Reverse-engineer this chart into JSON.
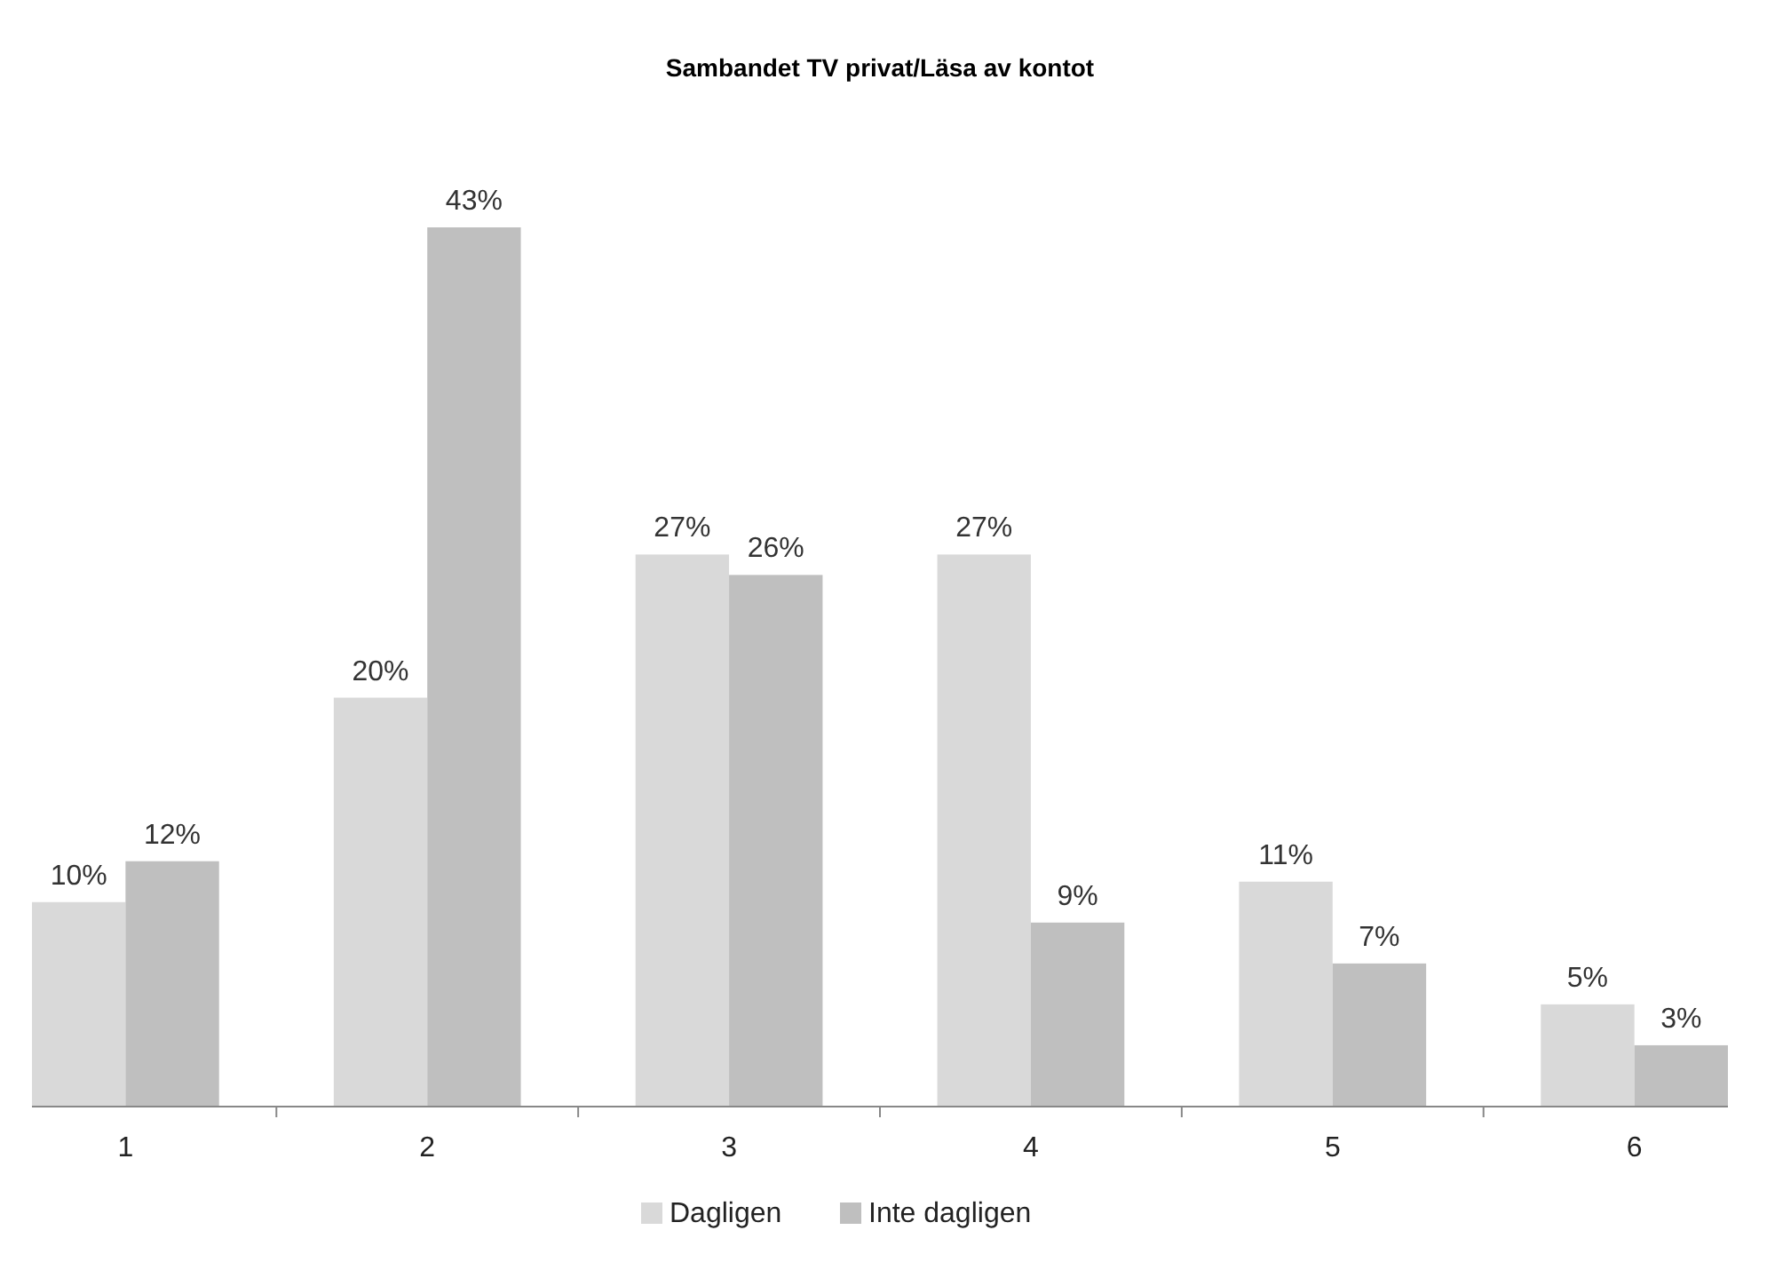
{
  "chart_data": {
    "type": "bar",
    "title": "Sambandet TV privat/Läsa av kontot",
    "categories": [
      "1",
      "2",
      "3",
      "4",
      "5",
      "6"
    ],
    "series": [
      {
        "name": "Dagligen",
        "color": "#d9d9d9",
        "values": [
          10,
          20,
          27,
          27,
          11,
          5
        ],
        "value_labels": [
          "10%",
          "20%",
          "27%",
          "27%",
          "11%",
          "5%"
        ]
      },
      {
        "name": "Inte dagligen",
        "color": "#bfbfbf",
        "values": [
          12,
          43,
          26,
          9,
          7,
          3
        ],
        "value_labels": [
          "12%",
          "43%",
          "26%",
          "9%",
          "7%",
          "3%"
        ]
      }
    ],
    "legend": "bottom"
  }
}
